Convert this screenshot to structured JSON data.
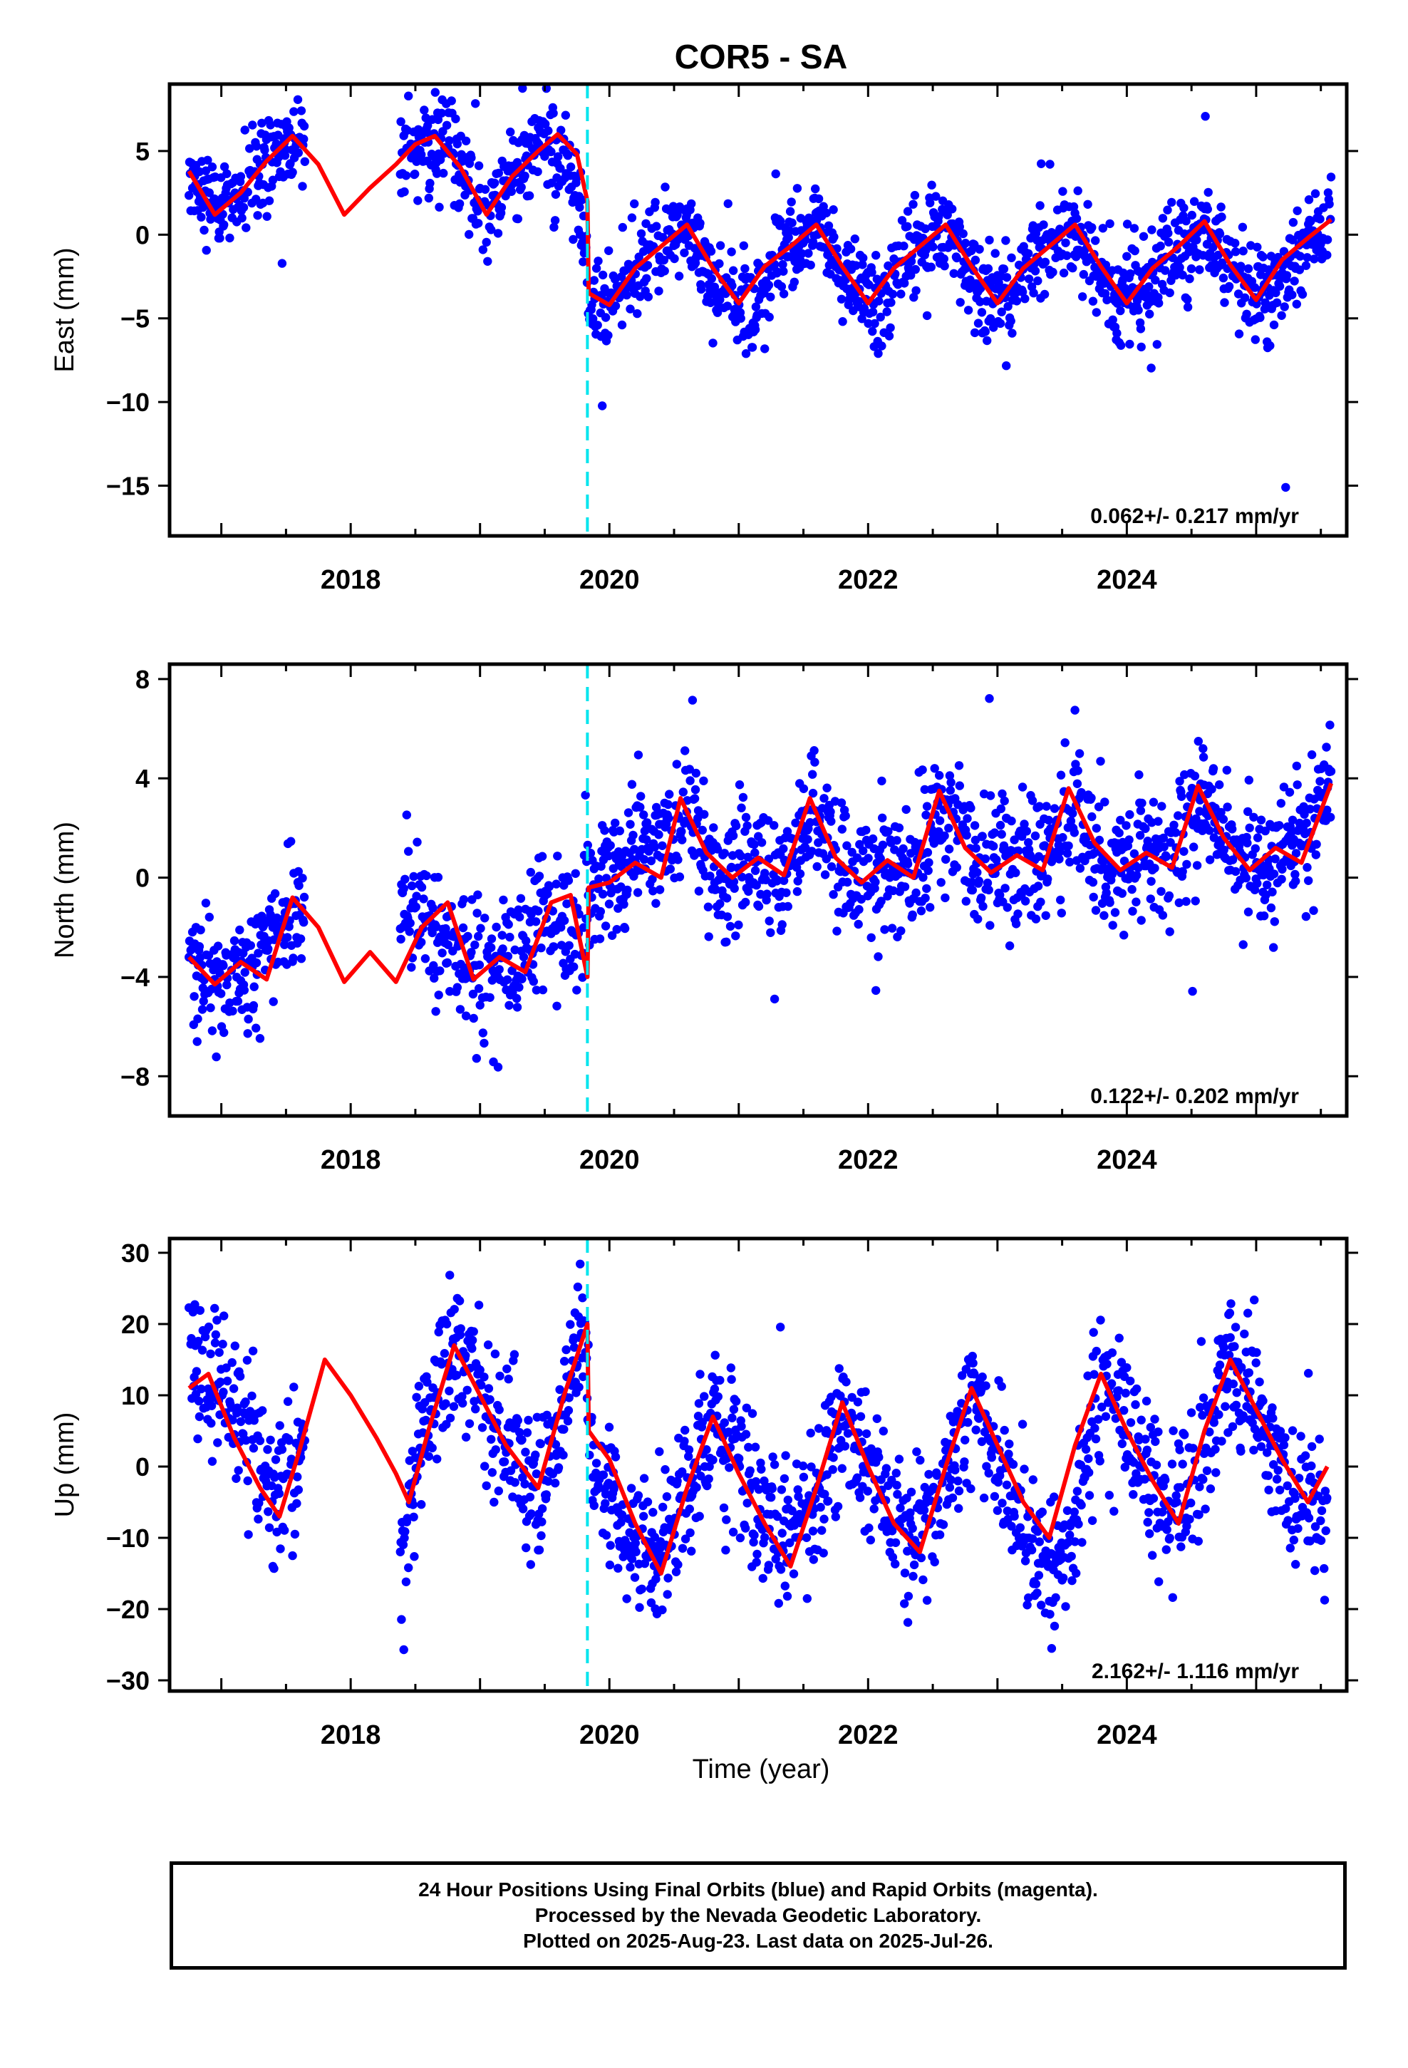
{
  "figure": {
    "title": "COR5 - SA",
    "xlabel": "Time (year)",
    "footer": [
      "24 Hour Positions Using Final Orbits (blue) and Rapid Orbits (magenta).",
      "Processed by the Nevada Geodetic Laboratory.",
      "Plotted on 2025-Aug-23. Last data on 2025-Jul-26."
    ],
    "colors": {
      "points": "#0000ff",
      "model": "#ff0000",
      "step": "#00e5ee",
      "frame": "#000000"
    }
  },
  "chart_data": [
    {
      "type": "scatter",
      "ylabel": "East (mm)",
      "xlim": [
        2016.6,
        2025.7
      ],
      "ylim": [
        -18,
        9
      ],
      "yticks": [
        5,
        0,
        -5,
        -10,
        -15
      ],
      "xticks": [
        2018,
        2020,
        2022,
        2024
      ],
      "grid": false,
      "rate_text": "0.062+/- 0.217 mm/yr",
      "step_epoch": 2019.83,
      "series": [
        {
          "role": "points",
          "x": [
            2016.75,
            2017.0,
            2017.25,
            2017.5,
            2017.62,
            2018.5,
            2018.75,
            2019.0,
            2019.25,
            2019.5,
            2019.75,
            2019.85,
            2020.1,
            2020.35,
            2020.6,
            2020.85,
            2021.1,
            2021.35,
            2021.6,
            2021.85,
            2022.1,
            2022.35,
            2022.6,
            2022.85,
            2023.1,
            2023.35,
            2023.6,
            2023.85,
            2024.1,
            2024.35,
            2024.6,
            2024.85,
            2025.1,
            2025.35,
            2025.58
          ],
          "y": [
            3.8,
            1.2,
            3.6,
            5.3,
            5.8,
            5.4,
            5.8,
            1.5,
            3.6,
            5.3,
            3.0,
            -3.4,
            -3.5,
            -1.0,
            0.4,
            -3.2,
            -4.1,
            -1.0,
            0.6,
            -3.4,
            -3.6,
            -1.2,
            0.6,
            -3.2,
            -3.8,
            -0.8,
            0.7,
            -3.4,
            -3.6,
            -0.9,
            0.7,
            -3.5,
            -3.8,
            -1.0,
            0.9
          ],
          "spread": 1.4
        },
        {
          "role": "model",
          "x": [
            2016.75,
            2016.95,
            2017.15,
            2017.35,
            2017.55,
            2017.75,
            2017.95,
            2018.15,
            2018.35,
            2018.5,
            2018.65,
            2018.85,
            2019.05,
            2019.25,
            2019.45,
            2019.6,
            2019.75,
            2019.83,
            2019.84,
            2020.0,
            2020.2,
            2020.4,
            2020.6,
            2020.8,
            2021.0,
            2021.2,
            2021.4,
            2021.6,
            2021.8,
            2022.0,
            2022.2,
            2022.4,
            2022.6,
            2022.8,
            2023.0,
            2023.2,
            2023.4,
            2023.6,
            2023.8,
            2024.0,
            2024.2,
            2024.4,
            2024.6,
            2024.8,
            2025.0,
            2025.2,
            2025.4,
            2025.58
          ],
          "y": [
            3.8,
            1.2,
            2.5,
            4.4,
            5.9,
            4.2,
            1.2,
            2.8,
            4.2,
            5.4,
            5.9,
            4.0,
            1.2,
            3.5,
            5.0,
            6.0,
            4.8,
            2.0,
            -3.5,
            -4.2,
            -2.0,
            -0.7,
            0.6,
            -2.0,
            -4.1,
            -1.9,
            -0.7,
            0.6,
            -1.9,
            -4.1,
            -2.0,
            -0.7,
            0.6,
            -1.9,
            -4.1,
            -2.0,
            -0.7,
            0.6,
            -1.9,
            -4.1,
            -2.0,
            -0.7,
            0.8,
            -1.8,
            -3.9,
            -1.5,
            -0.2,
            0.9
          ]
        }
      ]
    },
    {
      "type": "scatter",
      "ylabel": "North (mm)",
      "xlim": [
        2016.6,
        2025.7
      ],
      "ylim": [
        -9.6,
        8.6
      ],
      "yticks": [
        8,
        4,
        0,
        -4,
        -8
      ],
      "xticks": [
        2018,
        2020,
        2022,
        2024
      ],
      "grid": false,
      "rate_text": "0.122+/- 0.202 mm/yr",
      "step_epoch": 2019.83,
      "series": [
        {
          "role": "points",
          "x": [
            2016.75,
            2017.0,
            2017.25,
            2017.5,
            2017.62,
            2018.5,
            2018.75,
            2019.0,
            2019.25,
            2019.5,
            2019.75,
            2019.85,
            2020.1,
            2020.35,
            2020.6,
            2020.85,
            2021.1,
            2021.35,
            2021.6,
            2021.85,
            2022.1,
            2022.35,
            2022.6,
            2022.85,
            2023.1,
            2023.35,
            2023.6,
            2023.85,
            2024.1,
            2024.35,
            2024.6,
            2024.85,
            2025.1,
            2025.35,
            2025.58
          ],
          "y": [
            -3.2,
            -4.3,
            -3.6,
            -1.4,
            -1.0,
            -0.8,
            -2.5,
            -4.0,
            -3.5,
            -1.2,
            -2.6,
            -0.6,
            0.3,
            1.0,
            3.0,
            0.0,
            0.5,
            0.3,
            3.0,
            0.0,
            0.7,
            0.4,
            3.3,
            0.2,
            0.8,
            0.5,
            3.4,
            0.3,
            1.0,
            0.6,
            3.5,
            0.3,
            1.0,
            0.8,
            3.7
          ],
          "spread": 1.3
        },
        {
          "role": "model",
          "x": [
            2016.75,
            2016.95,
            2017.15,
            2017.35,
            2017.55,
            2017.75,
            2017.95,
            2018.15,
            2018.35,
            2018.55,
            2018.75,
            2018.95,
            2019.15,
            2019.35,
            2019.55,
            2019.7,
            2019.83,
            2019.84,
            2020.0,
            2020.2,
            2020.4,
            2020.55,
            2020.75,
            2020.95,
            2021.15,
            2021.35,
            2021.55,
            2021.75,
            2021.95,
            2022.15,
            2022.35,
            2022.55,
            2022.75,
            2022.95,
            2023.15,
            2023.35,
            2023.55,
            2023.75,
            2023.95,
            2024.15,
            2024.35,
            2024.55,
            2024.75,
            2024.95,
            2025.15,
            2025.35,
            2025.58
          ],
          "y": [
            -3.2,
            -4.3,
            -3.4,
            -4.1,
            -0.8,
            -2.0,
            -4.2,
            -3.0,
            -4.2,
            -2.0,
            -1.0,
            -4.1,
            -3.2,
            -3.8,
            -1.0,
            -0.7,
            -4.0,
            -0.4,
            -0.2,
            0.6,
            0.0,
            3.2,
            1.0,
            0.0,
            0.8,
            0.1,
            3.2,
            0.8,
            -0.2,
            0.7,
            0.0,
            3.5,
            1.2,
            0.2,
            0.9,
            0.3,
            3.6,
            1.4,
            0.3,
            1.0,
            0.4,
            3.7,
            1.6,
            0.3,
            1.2,
            0.6,
            3.8
          ]
        }
      ]
    },
    {
      "type": "scatter",
      "ylabel": "Up (mm)",
      "xlim": [
        2016.6,
        2025.7
      ],
      "ylim": [
        -31.5,
        32
      ],
      "yticks": [
        30,
        20,
        10,
        0,
        -10,
        -20,
        -30
      ],
      "xticks": [
        2018,
        2020,
        2022,
        2024
      ],
      "grid": false,
      "rate_text": "2.162+/- 1.116 mm/yr",
      "step_epoch": 2019.83,
      "series": [
        {
          "role": "points",
          "x": [
            2016.75,
            2017.0,
            2017.25,
            2017.4,
            2017.6,
            2017.75,
            2018.4,
            2018.55,
            2018.8,
            2019.0,
            2019.25,
            2019.45,
            2019.65,
            2019.8,
            2019.85,
            2020.1,
            2020.35,
            2020.6,
            2020.8,
            2021.05,
            2021.3,
            2021.55,
            2021.8,
            2022.05,
            2022.3,
            2022.55,
            2022.8,
            2023.05,
            2023.3,
            2023.55,
            2023.8,
            2024.05,
            2024.3,
            2024.55,
            2024.8,
            2025.05,
            2025.3,
            2025.55
          ],
          "y": [
            16,
            12,
            3,
            -5,
            0,
            12,
            -14,
            5,
            16,
            10,
            4,
            -3,
            8,
            22,
            2,
            -8,
            -13,
            -4,
            6,
            -2,
            -9,
            -10,
            7,
            -2,
            -10,
            -5,
            10,
            0,
            -12,
            -12,
            12,
            4,
            -6,
            -2,
            15,
            4,
            -4,
            -6
          ],
          "spread": 5.0
        },
        {
          "role": "model",
          "x": [
            2016.75,
            2016.9,
            2017.1,
            2017.3,
            2017.45,
            2017.6,
            2017.8,
            2018.0,
            2018.2,
            2018.35,
            2018.45,
            2018.6,
            2018.8,
            2019.0,
            2019.2,
            2019.45,
            2019.65,
            2019.83,
            2019.84,
            2020.0,
            2020.2,
            2020.4,
            2020.6,
            2020.8,
            2021.0,
            2021.2,
            2021.4,
            2021.6,
            2021.8,
            2022.0,
            2022.2,
            2022.4,
            2022.6,
            2022.8,
            2023.0,
            2023.2,
            2023.4,
            2023.6,
            2023.8,
            2024.0,
            2024.2,
            2024.4,
            2024.6,
            2024.8,
            2025.0,
            2025.2,
            2025.4,
            2025.55
          ],
          "y": [
            11,
            13,
            4,
            -3,
            -7,
            2,
            15,
            10,
            4,
            -1,
            -5,
            5,
            17,
            10,
            3,
            -3,
            10,
            20,
            5,
            1,
            -8,
            -15,
            -3,
            7,
            -1,
            -8,
            -14,
            -3,
            9,
            0,
            -8,
            -12,
            0,
            11,
            3,
            -5,
            -10,
            3,
            13,
            5,
            -2,
            -8,
            5,
            15,
            8,
            1,
            -5,
            0
          ]
        }
      ]
    }
  ]
}
